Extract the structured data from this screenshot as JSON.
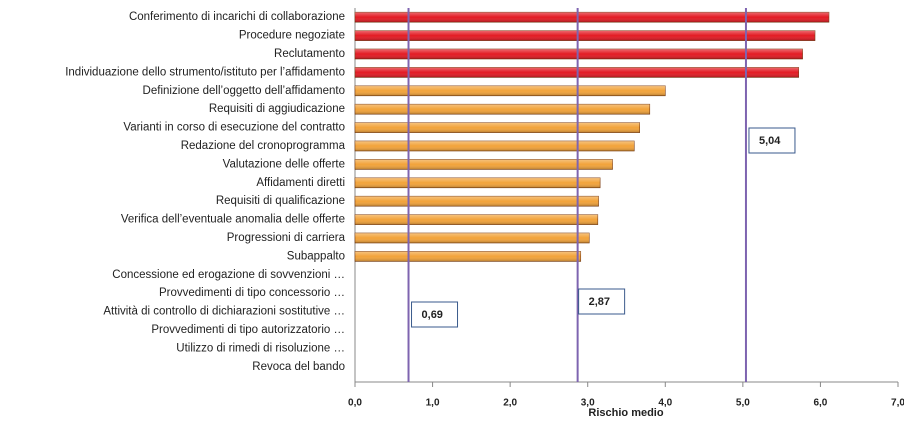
{
  "chart_data": {
    "type": "bar",
    "orientation": "horizontal",
    "categories": [
      "Conferimento di incarichi di collaborazione",
      "Procedure negoziate",
      "Reclutamento",
      "Individuazione dello strumento/istituto per l’affidamento",
      "Definizione dell’oggetto dell’affidamento",
      "Requisiti di aggiudicazione",
      "Varianti in corso di esecuzione del contratto",
      "Redazione del cronoprogramma",
      "Valutazione delle offerte",
      "Affidamenti diretti",
      "Requisiti di qualificazione",
      "Verifica dell’eventuale anomalia delle offerte",
      "Progressioni di carriera",
      "Subappalto",
      "Concessione ed erogazione di sovvenzioni …",
      "Provvedimenti di tipo concessorio …",
      "Attività di controllo di dichiarazioni sostitutive …",
      "Provvedimenti di tipo autorizzatorio …",
      "Utilizzo di rimedi di risoluzione …",
      "Revoca del bando"
    ],
    "values": [
      6.11,
      5.93,
      5.77,
      5.72,
      4.0,
      3.8,
      3.67,
      3.6,
      3.32,
      3.16,
      3.14,
      3.13,
      3.02,
      2.91,
      0,
      0,
      0,
      0,
      0,
      0
    ],
    "colors": [
      "#e31b23",
      "#e31b23",
      "#e31b23",
      "#e31b23",
      "#f2a33a",
      "#f2a33a",
      "#f2a33a",
      "#f2a33a",
      "#f2a33a",
      "#f2a33a",
      "#f2a33a",
      "#f2a33a",
      "#f2a33a",
      "#f2a33a",
      "#f2a33a",
      "#f2a33a",
      "#f2a33a",
      "#f2a33a",
      "#f2a33a",
      "#f2a33a"
    ],
    "xlabel": "Rischio medio",
    "xlim": [
      0,
      7
    ],
    "xticks": [
      {
        "value": 0,
        "label": "0,0"
      },
      {
        "value": 1,
        "label": "1,0"
      },
      {
        "value": 2,
        "label": "2,0"
      },
      {
        "value": 3,
        "label": "3,0"
      },
      {
        "value": 4,
        "label": "4,0"
      },
      {
        "value": 5,
        "label": "5,0"
      },
      {
        "value": 6,
        "label": "6,0"
      },
      {
        "value": 7,
        "label": "7,0"
      }
    ],
    "reference_lines": [
      {
        "value": 0.69,
        "label": "0,69",
        "color": "#7e64b0"
      },
      {
        "value": 2.87,
        "label": "2,87",
        "color": "#7e64b0"
      },
      {
        "value": 5.04,
        "label": "5,04",
        "color": "#7e64b0"
      }
    ]
  }
}
